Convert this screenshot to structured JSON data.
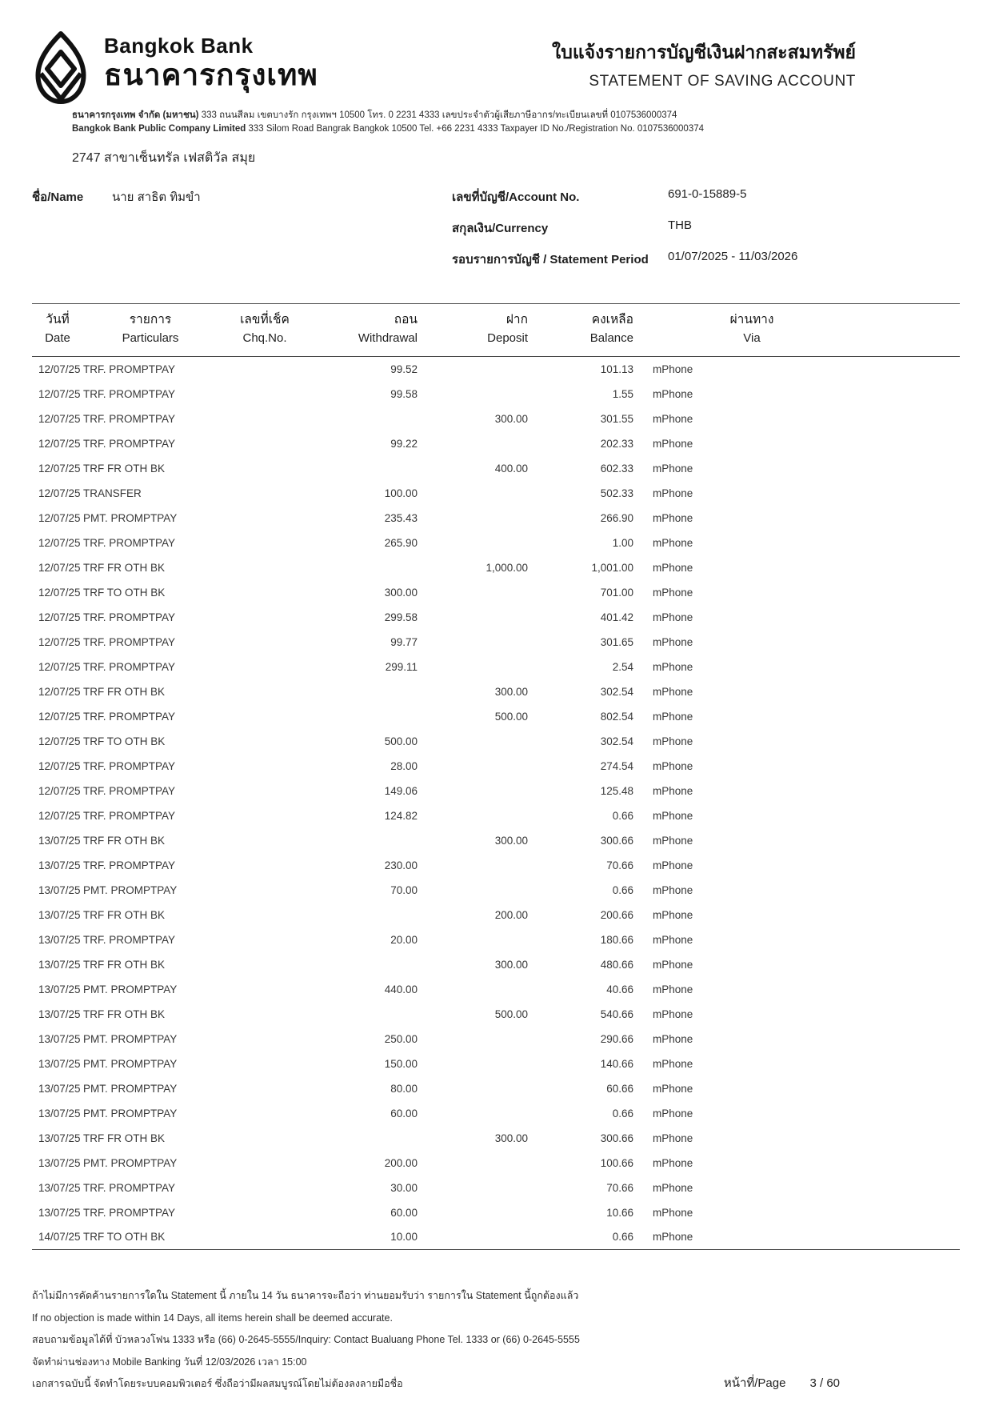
{
  "brand": {
    "name_en": "Bangkok Bank",
    "name_th": "ธนาคารกรุงเทพ"
  },
  "title": {
    "th": "ใบแจ้งรายการบัญชีเงินฝากสะสมทรัพย์",
    "en": "STATEMENT OF SAVING ACCOUNT"
  },
  "bank_address": {
    "th_lead": "ธนาคารกรุงเทพ จำกัด (มหาชน)",
    "th_rest": "333 ถนนสีลม เขตบางรัก กรุงเทพฯ 10500 โทร. 0 2231 4333 เลขประจำตัวผู้เสียภาษีอากร/ทะเบียนเลขที่ 0107536000374",
    "en_lead": "Bangkok Bank Public Company Limited",
    "en_rest": "333 Silom Road Bangrak Bangkok 10500 Tel. +66 2231 4333 Taxpayer ID No./Registration No. 0107536000374"
  },
  "branch": "2747 สาขาเซ็นทรัล เฟสติวัล สมุย",
  "customer": {
    "name_label": "ชื่อ/Name",
    "name": "นาย สาธิต ทิมขำ"
  },
  "account": {
    "number_label": "เลขที่บัญชี/Account No.",
    "number": "691-0-15889-5",
    "currency_label": "สกุลเงิน/Currency",
    "currency": "THB",
    "period_label": "รอบรายการบัญชี / Statement Period",
    "period": "01/07/2025 - 11/03/2026"
  },
  "table": {
    "headers": [
      {
        "th": "วันที่",
        "en": "Date"
      },
      {
        "th": "รายการ",
        "en": "Particulars"
      },
      {
        "th": "เลขที่เช็ค",
        "en": "Chq.No."
      },
      {
        "th": "ถอน",
        "en": "Withdrawal"
      },
      {
        "th": "ฝาก",
        "en": "Deposit"
      },
      {
        "th": "คงเหลือ",
        "en": "Balance"
      },
      {
        "th": "ผ่านทาง",
        "en": "Via"
      }
    ],
    "rows": [
      [
        "12/07/25",
        "TRF. PROMPTPAY",
        "",
        "99.52",
        "",
        "101.13",
        "mPhone"
      ],
      [
        "12/07/25",
        "TRF. PROMPTPAY",
        "",
        "99.58",
        "",
        "1.55",
        "mPhone"
      ],
      [
        "12/07/25",
        "TRF. PROMPTPAY",
        "",
        "",
        "300.00",
        "301.55",
        "mPhone"
      ],
      [
        "12/07/25",
        "TRF. PROMPTPAY",
        "",
        "99.22",
        "",
        "202.33",
        "mPhone"
      ],
      [
        "12/07/25",
        "TRF FR OTH BK",
        "",
        "",
        "400.00",
        "602.33",
        "mPhone"
      ],
      [
        "12/07/25",
        "TRANSFER",
        "",
        "100.00",
        "",
        "502.33",
        "mPhone"
      ],
      [
        "12/07/25",
        "PMT. PROMPTPAY",
        "",
        "235.43",
        "",
        "266.90",
        "mPhone"
      ],
      [
        "12/07/25",
        "TRF. PROMPTPAY",
        "",
        "265.90",
        "",
        "1.00",
        "mPhone"
      ],
      [
        "12/07/25",
        "TRF FR OTH BK",
        "",
        "",
        "1,000.00",
        "1,001.00",
        "mPhone"
      ],
      [
        "12/07/25",
        "TRF TO OTH BK",
        "",
        "300.00",
        "",
        "701.00",
        "mPhone"
      ],
      [
        "12/07/25",
        "TRF. PROMPTPAY",
        "",
        "299.58",
        "",
        "401.42",
        "mPhone"
      ],
      [
        "12/07/25",
        "TRF. PROMPTPAY",
        "",
        "99.77",
        "",
        "301.65",
        "mPhone"
      ],
      [
        "12/07/25",
        "TRF. PROMPTPAY",
        "",
        "299.11",
        "",
        "2.54",
        "mPhone"
      ],
      [
        "12/07/25",
        "TRF FR OTH BK",
        "",
        "",
        "300.00",
        "302.54",
        "mPhone"
      ],
      [
        "12/07/25",
        "TRF. PROMPTPAY",
        "",
        "",
        "500.00",
        "802.54",
        "mPhone"
      ],
      [
        "12/07/25",
        "TRF TO OTH BK",
        "",
        "500.00",
        "",
        "302.54",
        "mPhone"
      ],
      [
        "12/07/25",
        "TRF. PROMPTPAY",
        "",
        "28.00",
        "",
        "274.54",
        "mPhone"
      ],
      [
        "12/07/25",
        "TRF. PROMPTPAY",
        "",
        "149.06",
        "",
        "125.48",
        "mPhone"
      ],
      [
        "12/07/25",
        "TRF. PROMPTPAY",
        "",
        "124.82",
        "",
        "0.66",
        "mPhone"
      ],
      [
        "13/07/25",
        "TRF FR OTH BK",
        "",
        "",
        "300.00",
        "300.66",
        "mPhone"
      ],
      [
        "13/07/25",
        "TRF. PROMPTPAY",
        "",
        "230.00",
        "",
        "70.66",
        "mPhone"
      ],
      [
        "13/07/25",
        "PMT. PROMPTPAY",
        "",
        "70.00",
        "",
        "0.66",
        "mPhone"
      ],
      [
        "13/07/25",
        "TRF FR OTH BK",
        "",
        "",
        "200.00",
        "200.66",
        "mPhone"
      ],
      [
        "13/07/25",
        "TRF. PROMPTPAY",
        "",
        "20.00",
        "",
        "180.66",
        "mPhone"
      ],
      [
        "13/07/25",
        "TRF FR OTH BK",
        "",
        "",
        "300.00",
        "480.66",
        "mPhone"
      ],
      [
        "13/07/25",
        "PMT. PROMPTPAY",
        "",
        "440.00",
        "",
        "40.66",
        "mPhone"
      ],
      [
        "13/07/25",
        "TRF FR OTH BK",
        "",
        "",
        "500.00",
        "540.66",
        "mPhone"
      ],
      [
        "13/07/25",
        "PMT. PROMPTPAY",
        "",
        "250.00",
        "",
        "290.66",
        "mPhone"
      ],
      [
        "13/07/25",
        "PMT. PROMPTPAY",
        "",
        "150.00",
        "",
        "140.66",
        "mPhone"
      ],
      [
        "13/07/25",
        "PMT. PROMPTPAY",
        "",
        "80.00",
        "",
        "60.66",
        "mPhone"
      ],
      [
        "13/07/25",
        "PMT. PROMPTPAY",
        "",
        "60.00",
        "",
        "0.66",
        "mPhone"
      ],
      [
        "13/07/25",
        "TRF FR OTH BK",
        "",
        "",
        "300.00",
        "300.66",
        "mPhone"
      ],
      [
        "13/07/25",
        "PMT. PROMPTPAY",
        "",
        "200.00",
        "",
        "100.66",
        "mPhone"
      ],
      [
        "13/07/25",
        "TRF. PROMPTPAY",
        "",
        "30.00",
        "",
        "70.66",
        "mPhone"
      ],
      [
        "13/07/25",
        "TRF. PROMPTPAY",
        "",
        "60.00",
        "",
        "10.66",
        "mPhone"
      ],
      [
        "14/07/25",
        "TRF TO OTH BK",
        "",
        "10.00",
        "",
        "0.66",
        "mPhone"
      ]
    ]
  },
  "footer": {
    "line1": "ถ้าไม่มีการคัดค้านรายการใดใน Statement นี้ ภายใน 14 วัน ธนาคารจะถือว่า ท่านยอมรับว่า รายการใน Statement นี้ถูกต้องแล้ว",
    "line2": "If no objection is made within 14 Days, all items herein shall be deemed accurate.",
    "line3": "สอบถามข้อมูลได้ที่ บัวหลวงโฟน 1333 หรือ (66) 0-2645-5555/Inquiry: Contact Bualuang Phone Tel. 1333 or (66) 0-2645-5555",
    "line4": "จัดทำผ่านช่องทาง Mobile Banking วันที่ 12/03/2026 เวลา 15:00",
    "line5": "เอกสารฉบับนี้ จัดทำโดยระบบคอมพิวเตอร์ ซึ่งถือว่ามีผลสมบูรณ์โดยไม่ต้องลงลายมือชื่อ",
    "page_label": "หน้าที่/Page",
    "page_value": "3 / 60"
  },
  "colors": {
    "text": "#1f1f1f",
    "rule": "#4a4a4a"
  }
}
